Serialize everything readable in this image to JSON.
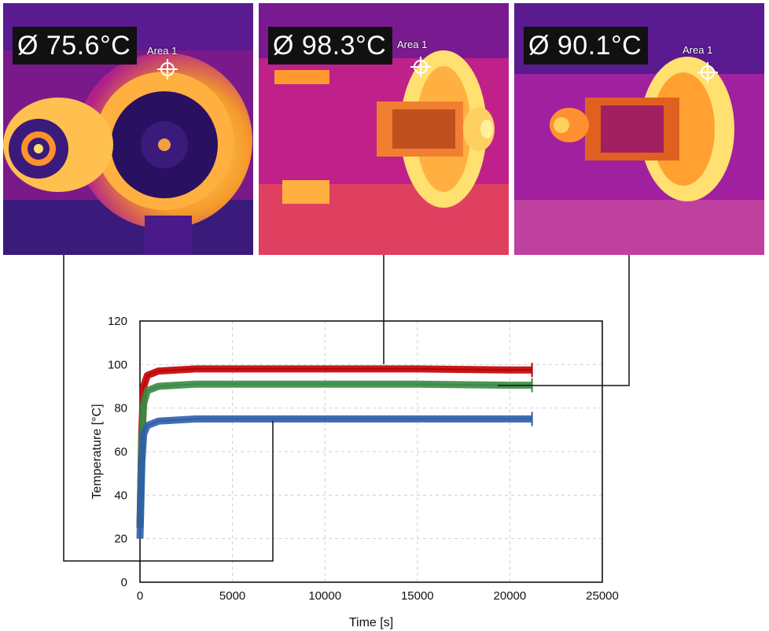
{
  "thermal_images": [
    {
      "readout": "Ø 75.6°C",
      "area_label": "Area 1"
    },
    {
      "readout": "Ø 98.3°C",
      "area_label": "Area 1"
    },
    {
      "readout": "Ø 90.1°C",
      "area_label": "Area 1"
    }
  ],
  "colors": {
    "series_red": "#c00000",
    "series_green": "#3a8a45",
    "series_blue": "#2f5fa8",
    "thermal_dark": "#2a1060",
    "thermal_mid": "#c0208a",
    "thermal_hot": "#ffe070"
  },
  "chart_data": {
    "type": "line",
    "title": "",
    "xlabel": "Time [s]",
    "ylabel": "Temperature [°C]",
    "xlim": [
      0,
      25000
    ],
    "ylim": [
      0,
      120
    ],
    "x_ticks": [
      "0",
      "5000",
      "10000",
      "15000",
      "20000",
      "25000"
    ],
    "y_ticks": [
      "0",
      "20",
      "40",
      "60",
      "80",
      "100",
      "120"
    ],
    "grid": true,
    "legend": "none",
    "series": [
      {
        "color": "#c00000",
        "x": [
          0,
          100,
          200,
          400,
          1000,
          3000,
          6000,
          10000,
          15000,
          20000,
          21200
        ],
        "y": [
          25,
          70,
          90,
          95,
          97,
          98,
          98,
          98,
          98,
          97.5,
          97.5
        ]
      },
      {
        "color": "#3a8a45",
        "x": [
          0,
          100,
          200,
          400,
          1000,
          3000,
          6000,
          10000,
          15000,
          20000,
          21200
        ],
        "y": [
          25,
          65,
          82,
          88,
          90,
          91,
          91,
          91,
          91,
          90.5,
          90.5
        ]
      },
      {
        "color": "#2f5fa8",
        "x": [
          0,
          100,
          200,
          400,
          1000,
          3000,
          6000,
          10000,
          15000,
          20000,
          21200
        ],
        "y": [
          20,
          55,
          68,
          72,
          74,
          75,
          75,
          75,
          75,
          75,
          75
        ]
      }
    ]
  }
}
